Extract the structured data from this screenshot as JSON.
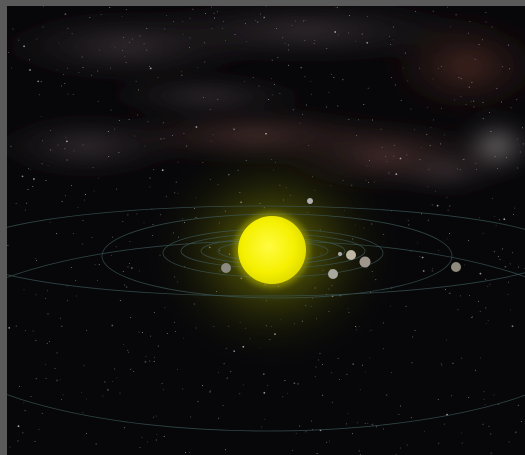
{
  "scene": {
    "type": "solar-system-3d-view",
    "bodies": [
      {
        "name": "sun",
        "color": "#f5f000"
      },
      {
        "name": "planet",
        "color": "#8a8a80"
      },
      {
        "name": "planet",
        "color": "#a8a8a0"
      },
      {
        "name": "planet",
        "color": "#bdb7a4"
      },
      {
        "name": "planet",
        "color": "#9e968a"
      },
      {
        "name": "planet",
        "color": "#b0b0b0"
      },
      {
        "name": "planet",
        "color": "#8e8a7c"
      },
      {
        "name": "planet",
        "color": "#a8a8a8"
      }
    ],
    "colors": {
      "space": "#07070a",
      "orbit_line": "#3d5a5a",
      "nebula": "#6e4a46",
      "sun_glow": "#b7c000",
      "frame": "#555555"
    }
  }
}
